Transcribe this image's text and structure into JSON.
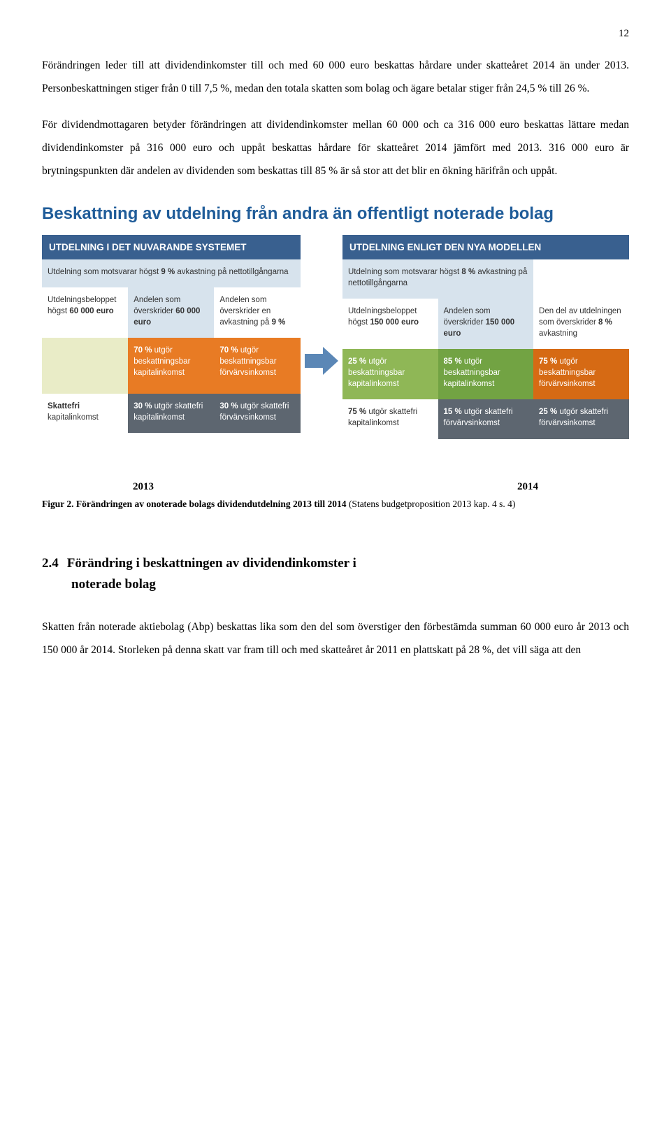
{
  "page_number": "12",
  "para1": "Förändringen leder till att dividendinkomster till och med 60 000 euro beskattas hårdare under skatteåret 2014 än under 2013. Personbeskattningen stiger från 0 till 7,5 %, medan den totala skatten som bolag och ägare betalar stiger från 24,5 % till 26 %.",
  "para2": "För dividendmottagaren betyder förändringen att dividendinkomster mellan 60 000 och ca 316 000 euro beskattas lättare medan dividendinkomster på 316 000 euro och uppåt beskattas hårdare för skatteåret 2014 jämfört med 2013. 316 000 euro är brytningspunkten där andelen av dividenden som beskattas till 85 % är så stor att det blir en ökning härifrån och uppåt.",
  "infographic": {
    "title": "Beskattning av utdelning från andra än offentligt noterade bolag",
    "colors": {
      "header_bg": "#39608f",
      "text_dark": "#333333",
      "lightblue": "#d7e3ed",
      "white": "#ffffff",
      "palegreen": "#e9ecc7",
      "orange": "#e87b24",
      "green": "#8fb756",
      "darkgreen": "#72a343",
      "darkorange": "#d66a14",
      "gray": "#5d6670",
      "arrow": "#5b87b6"
    },
    "left": {
      "header": "UTDELNING I DET NUVARANDE SYSTEMET",
      "row1": "Utdelning som motsvarar högst 9 % avkastning på nettotillgångarna",
      "row2_c1": "Utdelningsbeloppet högst 60 000 euro",
      "row2_c2": "Andelen som överskrider 60 000 euro",
      "row2_c3": "Andelen som överskrider en avkastning på 9 %",
      "row3_c2": "70 % utgör beskattningsbar kapitalinkomst",
      "row3_c3": "70 % utgör beskattningsbar förvärvsinkomst",
      "row4_c1": "Skattefri kapitalinkomst",
      "row4_c2": "30 % utgör skattefri kapitalinkomst",
      "row4_c3": "30 % utgör skattefri förvärvsinkomst"
    },
    "right": {
      "header": "UTDELNING ENLIGT DEN NYA MODELLEN",
      "row1": "Utdelning som motsvarar högst 8 % avkastning på nettotillgångarna",
      "row2_c1": "Utdelningsbeloppet högst 150 000 euro",
      "row2_c2": "Andelen som överskrider 150 000 euro",
      "row2_c3": "Den del av utdelningen som överskrider 8 % avkastning",
      "row3_c1": "25 % utgör beskattningsbar kapitalinkomst",
      "row3_c2": "85 % utgör beskattningsbar kapitalinkomst",
      "row3_c3": "75 % utgör beskattningsbar förvärvsinkomst",
      "row4_c1": "75 % utgör skattefri kapitalinkomst",
      "row4_c2": "15 % utgör skattefri förvärvsinkomst",
      "row4_c3": "25 % utgör skattefri förvärvsinkomst"
    }
  },
  "caption": {
    "year_left": "2013",
    "year_right": "2014",
    "bold": "Figur 2. Förändringen av onoterade bolags dividendutdelning 2013 till 2014 ",
    "rest": "(Statens budgetproposition 2013 kap. 4 s. 4)"
  },
  "heading": {
    "num": "2.4",
    "line1": "Förändring   i   beskattningen   av   dividendinkomster   i",
    "line2": "noterade bolag"
  },
  "para3": "Skatten från noterade aktiebolag (Abp) beskattas lika som den del som överstiger den förbestämda summan 60 000 euro år 2013 och 150 000 år 2014. Storleken på denna skatt var fram till och med skatteåret år 2011 en plattskatt på 28 %, det vill säga att den"
}
